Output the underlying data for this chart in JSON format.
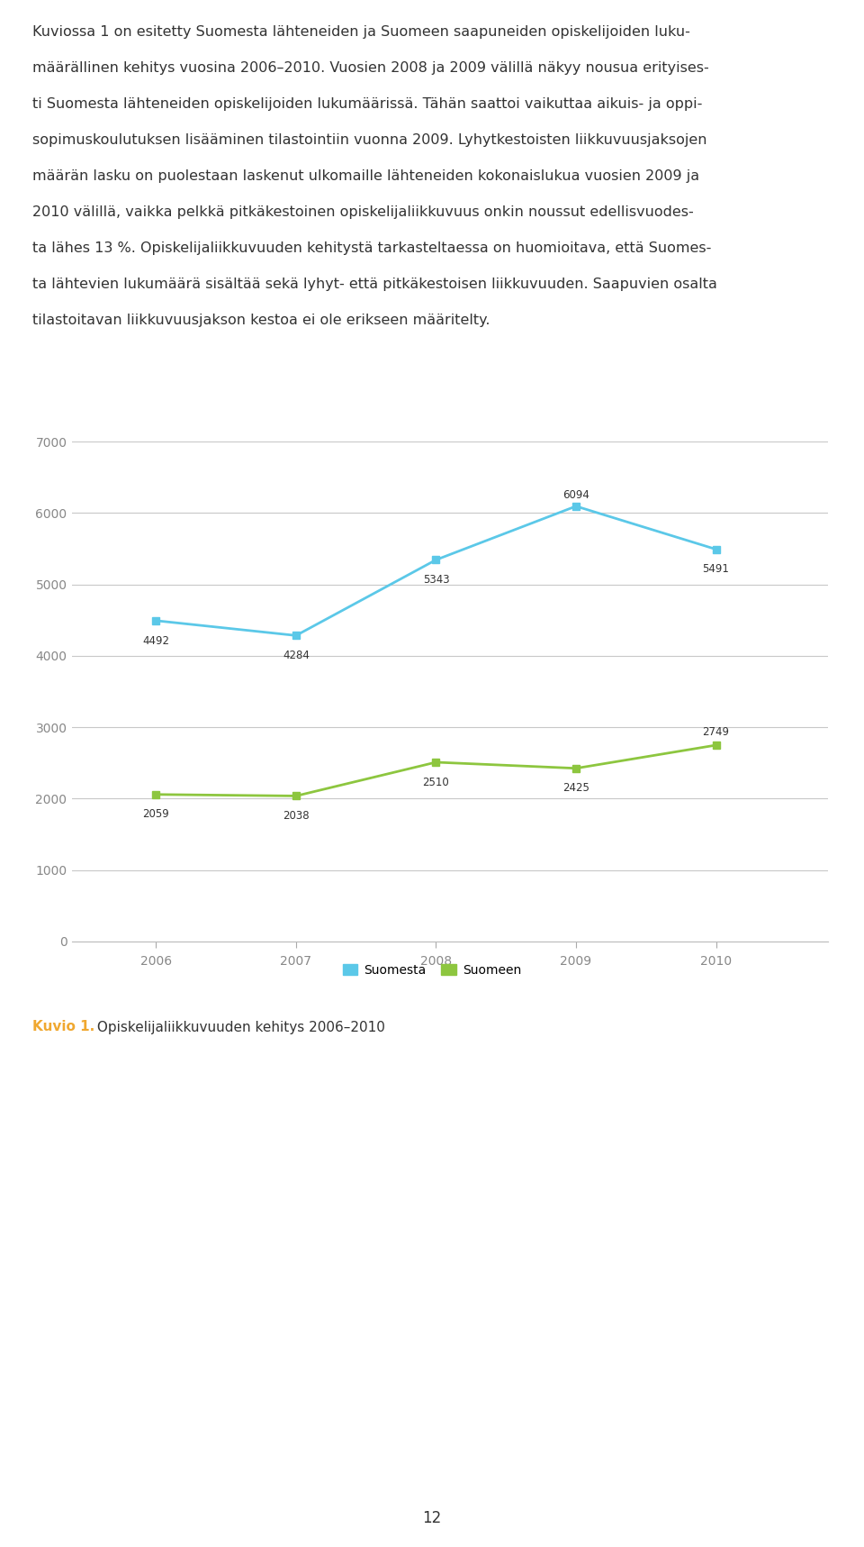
{
  "years": [
    2006,
    2007,
    2008,
    2009,
    2010
  ],
  "suomesta": [
    4492,
    4284,
    5343,
    6094,
    5491
  ],
  "suomeen": [
    2059,
    2038,
    2510,
    2425,
    2749
  ],
  "suomesta_color": "#5bc8e8",
  "suomeen_color": "#8dc63f",
  "suomesta_label": "Suomesta",
  "suomeen_label": "Suomeen",
  "ylim": [
    0,
    7000
  ],
  "yticks": [
    0,
    1000,
    2000,
    3000,
    4000,
    5000,
    6000,
    7000
  ],
  "border_color": "#f0a830",
  "background_color": "#ffffff",
  "chart_bg_color": "#ffffff",
  "grid_color": "#c8c8c8",
  "caption_bold": "Kuvio 1.",
  "caption_bold_color": "#f0a830",
  "caption_text": " Opiskelijaliikkuvuuden kehitys 2006–2010",
  "caption_fontsize": 11,
  "text_color": "#333333",
  "annotation_fontsize": 8.5,
  "axis_label_fontsize": 10,
  "legend_fontsize": 10,
  "line_width": 2.0,
  "marker": "s",
  "marker_size": 6,
  "body_lines": [
    "Kuviossa 1 on esitetty Suomesta lähteneiden ja Suomeen saapuneiden opiskelijoiden luku-",
    "määrällinen kehitys vuosina 2006–2010. Vuosien 2008 ja 2009 välillä näkyy nousua erityises-",
    "ti Suomesta lähteneiden opiskelijoiden lukumäärissä. Tähän saattoi vaikuttaa aikuis- ja oppi-",
    "sopimuskoulutuksen lisääminen tilastointiin vuonna 2009. Lyhytkestoisten liikkuvuusjaksojen",
    "määrän lasku on puolestaan laskenut ulkomaille lähteneiden kokonaislukua vuosien 2009 ja",
    "2010 välillä, vaikka pelkkä pitkäkestoinen opiskelijaliikkuvuus onkin noussut edellisvuodes-",
    "ta lähes 13 %. Opiskelijaliikkuvuuden kehitystä tarkasteltaessa on huomioitava, että Suomes-",
    "ta lähtevien lukumäärä sisältää sekä lyhyt- että pitkäkestoisen liikkuvuuden. Saapuvien osalta",
    "tilastoitavan liikkuvuusjakson kestoa ei ole erikseen määritelty."
  ],
  "body_fontsize": 11.5,
  "page_number": "12"
}
